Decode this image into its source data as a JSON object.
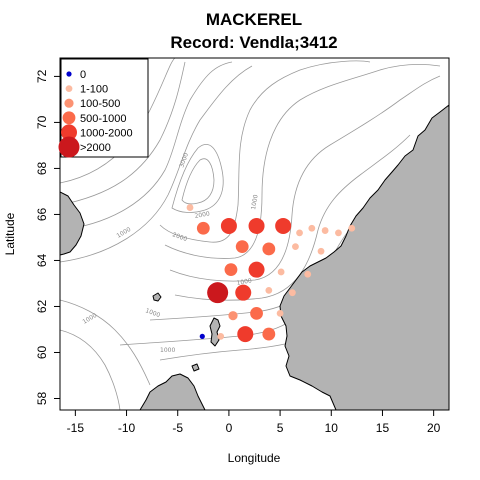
{
  "chart_data": {
    "type": "scatter",
    "title": "MACKEREL",
    "subtitle": "Record: Vendla;3412",
    "xlabel": "Longitude",
    "ylabel": "Latitude",
    "xlim": [
      -16.5,
      21.5
    ],
    "ylim": [
      57.5,
      72.8
    ],
    "x_ticks": [
      -15,
      -10,
      -5,
      0,
      5,
      10,
      15,
      20
    ],
    "y_ticks": [
      58,
      60,
      62,
      64,
      66,
      68,
      70,
      72
    ],
    "legend": {
      "placement": "top-left",
      "entries": [
        {
          "label": "0",
          "color": "#0000cc"
        },
        {
          "label": "1-100",
          "color": "#fcbba1"
        },
        {
          "label": "100-500",
          "color": "#fc9272"
        },
        {
          "label": "500-1000",
          "color": "#fb6a4a"
        },
        {
          "label": "1000-2000",
          "color": "#ef3b2c"
        },
        {
          "label": ">2000",
          "color": "#cb181d"
        }
      ]
    },
    "contour_labels": [
      "3000",
      "1000",
      "2000",
      "2000",
      "1000",
      "1000",
      "1000",
      "1000",
      "1000"
    ],
    "points": [
      {
        "lon": -3.8,
        "lat": 66.3,
        "cls": "1-100"
      },
      {
        "lon": -2.5,
        "lat": 65.4,
        "cls": "500-1000"
      },
      {
        "lon": 0.0,
        "lat": 65.5,
        "cls": "1000-2000"
      },
      {
        "lon": 2.7,
        "lat": 65.5,
        "cls": "1000-2000"
      },
      {
        "lon": 5.3,
        "lat": 65.5,
        "cls": "1000-2000"
      },
      {
        "lon": 6.9,
        "lat": 65.2,
        "cls": "1-100"
      },
      {
        "lon": 8.1,
        "lat": 65.4,
        "cls": "1-100"
      },
      {
        "lon": 9.4,
        "lat": 65.3,
        "cls": "1-100"
      },
      {
        "lon": 10.7,
        "lat": 65.2,
        "cls": "1-100"
      },
      {
        "lon": 12.0,
        "lat": 65.4,
        "cls": "1-100"
      },
      {
        "lon": 1.3,
        "lat": 64.6,
        "cls": "500-1000"
      },
      {
        "lon": 3.9,
        "lat": 64.5,
        "cls": "500-1000"
      },
      {
        "lon": 6.5,
        "lat": 64.6,
        "cls": "1-100"
      },
      {
        "lon": 9.0,
        "lat": 64.4,
        "cls": "1-100"
      },
      {
        "lon": 0.2,
        "lat": 63.6,
        "cls": "500-1000"
      },
      {
        "lon": 2.7,
        "lat": 63.6,
        "cls": "1000-2000"
      },
      {
        "lon": 5.1,
        "lat": 63.5,
        "cls": "1-100"
      },
      {
        "lon": 7.7,
        "lat": 63.4,
        "cls": "1-100"
      },
      {
        "lon": -1.1,
        "lat": 62.6,
        "cls": ">2000"
      },
      {
        "lon": 1.4,
        "lat": 62.6,
        "cls": "1000-2000"
      },
      {
        "lon": 3.9,
        "lat": 62.7,
        "cls": "1-100"
      },
      {
        "lon": 6.2,
        "lat": 62.6,
        "cls": "1-100"
      },
      {
        "lon": 0.4,
        "lat": 61.6,
        "cls": "100-500"
      },
      {
        "lon": 2.7,
        "lat": 61.7,
        "cls": "500-1000"
      },
      {
        "lon": 5.0,
        "lat": 61.7,
        "cls": "1-100"
      },
      {
        "lon": -2.6,
        "lat": 60.7,
        "cls": "0"
      },
      {
        "lon": -0.8,
        "lat": 60.7,
        "cls": "1-100"
      },
      {
        "lon": 1.6,
        "lat": 60.8,
        "cls": "1000-2000"
      },
      {
        "lon": 3.9,
        "lat": 60.8,
        "cls": "500-1000"
      }
    ]
  }
}
